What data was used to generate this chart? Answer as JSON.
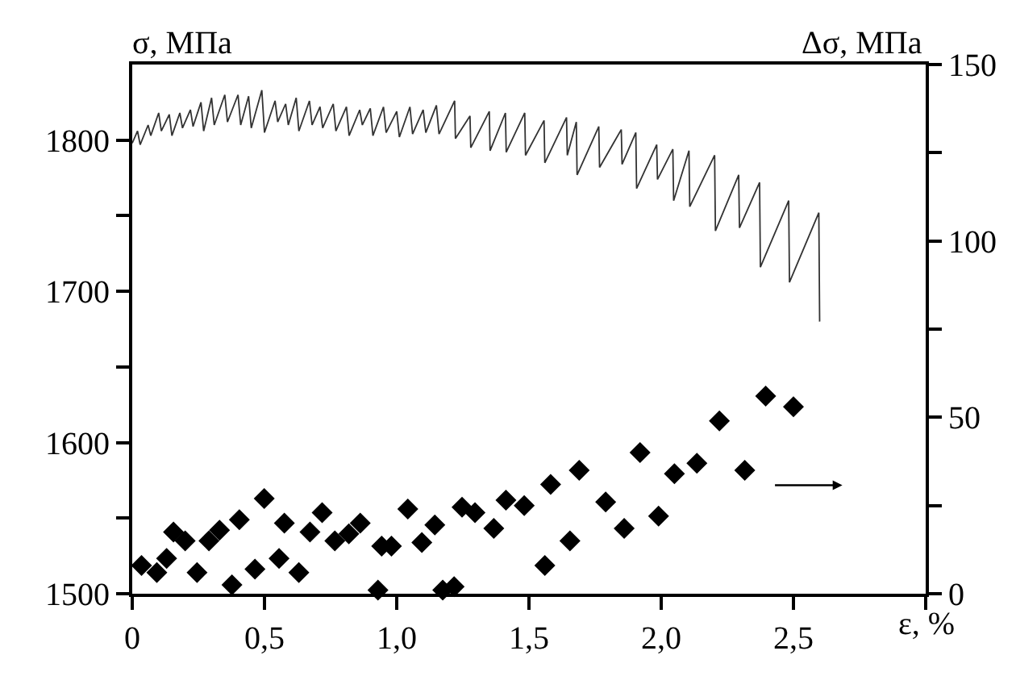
{
  "chart_data": {
    "type": "line",
    "ylabel": "σ, МПа",
    "y2label": "Δσ, МПа",
    "xlabel": "ε, %",
    "xlim": [
      0,
      3.0
    ],
    "xticks": [
      {
        "value": 0,
        "label": "0"
      },
      {
        "value": 0.5,
        "label": "0,5"
      },
      {
        "value": 1.0,
        "label": "1,0"
      },
      {
        "value": 1.5,
        "label": "1,5"
      },
      {
        "value": 2.0,
        "label": "2,0"
      },
      {
        "value": 2.5,
        "label": "2,5"
      },
      {
        "value": 3.0,
        "label": null
      }
    ],
    "ylim": [
      1500,
      1850
    ],
    "yticks": [
      1500,
      {
        "value": 1550,
        "label": null
      },
      1600,
      {
        "value": 1650,
        "label": null
      },
      1700,
      {
        "value": 1750,
        "label": null
      },
      1800
    ],
    "y2lim": [
      0,
      150
    ],
    "y2ticks": [
      0,
      {
        "value": 25,
        "label": null
      },
      50,
      {
        "value": 75,
        "label": null
      },
      100,
      {
        "value": 125,
        "label": null
      },
      150
    ],
    "grid": false,
    "legend": false,
    "series": [
      {
        "axis": "y",
        "color": "#333333",
        "marker": "none",
        "line_style": "solid",
        "x": [
          0.0,
          0.02,
          0.03,
          0.06,
          0.07,
          0.1,
          0.11,
          0.14,
          0.15,
          0.18,
          0.19,
          0.22,
          0.23,
          0.26,
          0.27,
          0.3,
          0.31,
          0.35,
          0.36,
          0.4,
          0.41,
          0.44,
          0.45,
          0.49,
          0.5,
          0.54,
          0.55,
          0.58,
          0.59,
          0.62,
          0.63,
          0.67,
          0.68,
          0.71,
          0.72,
          0.76,
          0.77,
          0.81,
          0.82,
          0.86,
          0.87,
          0.9,
          0.91,
          0.95,
          0.96,
          1.0,
          1.01,
          1.05,
          1.06,
          1.1,
          1.11,
          1.15,
          1.16,
          1.219,
          1.222,
          1.277,
          1.28,
          1.35,
          1.353,
          1.411,
          1.414,
          1.484,
          1.487,
          1.557,
          1.56,
          1.642,
          1.645,
          1.679,
          1.682,
          1.764,
          1.767,
          1.849,
          1.852,
          1.904,
          1.907,
          1.983,
          1.986,
          2.044,
          2.047,
          2.105,
          2.108,
          2.202,
          2.205,
          2.293,
          2.296,
          2.372,
          2.375,
          2.482,
          2.485,
          2.596,
          2.599
        ],
        "values": [
          1798,
          1806,
          1797,
          1810,
          1803,
          1818,
          1806,
          1817,
          1803,
          1818,
          1808,
          1820,
          1809,
          1825,
          1806,
          1828,
          1810,
          1830,
          1812,
          1830,
          1810,
          1829,
          1808,
          1833,
          1805,
          1826,
          1812,
          1824,
          1810,
          1828,
          1806,
          1826,
          1810,
          1822,
          1808,
          1824,
          1806,
          1822,
          1803,
          1820,
          1810,
          1821,
          1803,
          1822,
          1805,
          1819,
          1802,
          1822,
          1804,
          1820,
          1805,
          1823,
          1804,
          1826,
          1801,
          1816,
          1795,
          1819,
          1793,
          1818,
          1792,
          1818,
          1790,
          1813,
          1785,
          1815,
          1790,
          1812,
          1777,
          1809,
          1782,
          1807,
          1784,
          1805,
          1768,
          1797,
          1774,
          1794,
          1760,
          1793,
          1756,
          1790,
          1740,
          1777,
          1742,
          1772,
          1716,
          1760,
          1706,
          1752,
          1680
        ]
      },
      {
        "type": "scatter",
        "axis": "y2",
        "color": "#000000",
        "marker": "diamond",
        "x": [
          0.035,
          0.093,
          0.13,
          0.156,
          0.2,
          0.245,
          0.29,
          0.33,
          0.377,
          0.405,
          0.464,
          0.499,
          0.555,
          0.575,
          0.63,
          0.672,
          0.718,
          0.766,
          0.819,
          0.862,
          0.929,
          0.943,
          0.98,
          1.042,
          1.095,
          1.144,
          1.174,
          1.217,
          1.247,
          1.296,
          1.367,
          1.413,
          1.482,
          1.56,
          1.582,
          1.655,
          1.69,
          1.79,
          1.86,
          1.92,
          1.99,
          2.05,
          2.135,
          2.22,
          2.316,
          2.395,
          2.5
        ],
        "values": [
          8,
          6,
          10,
          17.5,
          15,
          6,
          15,
          18,
          2.5,
          21,
          7,
          27,
          10,
          20,
          6,
          17.5,
          23,
          15,
          17,
          20,
          1,
          13.5,
          13.5,
          24,
          14.5,
          19.5,
          1,
          2,
          24.5,
          23,
          18.5,
          26.5,
          25,
          8,
          31,
          15,
          35,
          26,
          18.5,
          40,
          22,
          34,
          37,
          49,
          35,
          56,
          53
        ]
      }
    ]
  }
}
